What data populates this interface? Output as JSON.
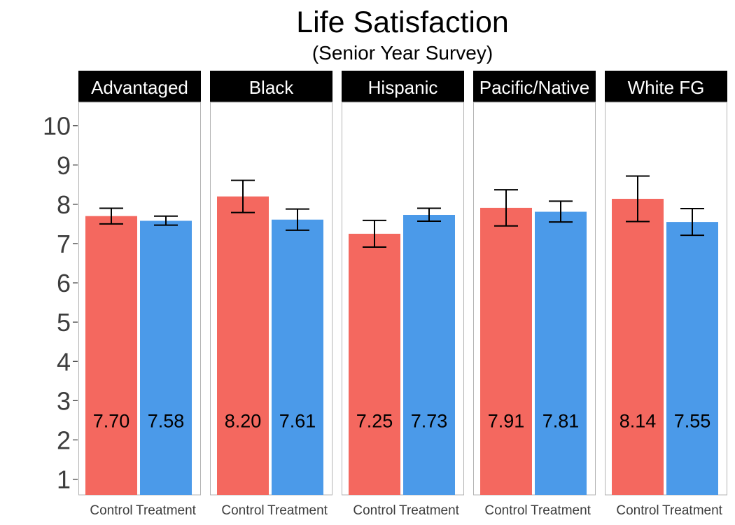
{
  "chart_data": {
    "type": "bar",
    "title": "Life Satisfaction",
    "subtitle": "(Senior Year Survey)",
    "xlabel": "",
    "ylabel": "",
    "ylim": [
      0.6,
      10.6
    ],
    "yticks": [
      1,
      2,
      3,
      4,
      5,
      6,
      7,
      8,
      9,
      10
    ],
    "categories": [
      "Control",
      "Treatment"
    ],
    "colors": {
      "Control": "#f4685f",
      "Treatment": "#4b9ae9"
    },
    "panels": [
      {
        "name": "Advantaged",
        "values": [
          7.7,
          7.58
        ],
        "labels": [
          "7.70",
          "7.58"
        ],
        "error": [
          [
            7.5,
            7.9
          ],
          [
            7.47,
            7.7
          ]
        ]
      },
      {
        "name": "Black",
        "values": [
          8.2,
          7.61
        ],
        "labels": [
          "8.20",
          "7.61"
        ],
        "error": [
          [
            7.79,
            8.61
          ],
          [
            7.34,
            7.88
          ]
        ]
      },
      {
        "name": "Hispanic",
        "values": [
          7.25,
          7.73
        ],
        "labels": [
          "7.25",
          "7.73"
        ],
        "error": [
          [
            6.91,
            7.59
          ],
          [
            7.57,
            7.9
          ]
        ]
      },
      {
        "name": "Pacific/Native",
        "values": [
          7.91,
          7.81
        ],
        "labels": [
          "7.91",
          "7.81"
        ],
        "error": [
          [
            7.45,
            8.37
          ],
          [
            7.55,
            8.08
          ]
        ]
      },
      {
        "name": "White FG",
        "values": [
          8.14,
          7.55
        ],
        "labels": [
          "8.14",
          "7.55"
        ],
        "error": [
          [
            7.56,
            8.72
          ],
          [
            7.21,
            7.89
          ]
        ]
      }
    ],
    "value_label_y": 2.5,
    "grid": false,
    "legend": "none"
  }
}
